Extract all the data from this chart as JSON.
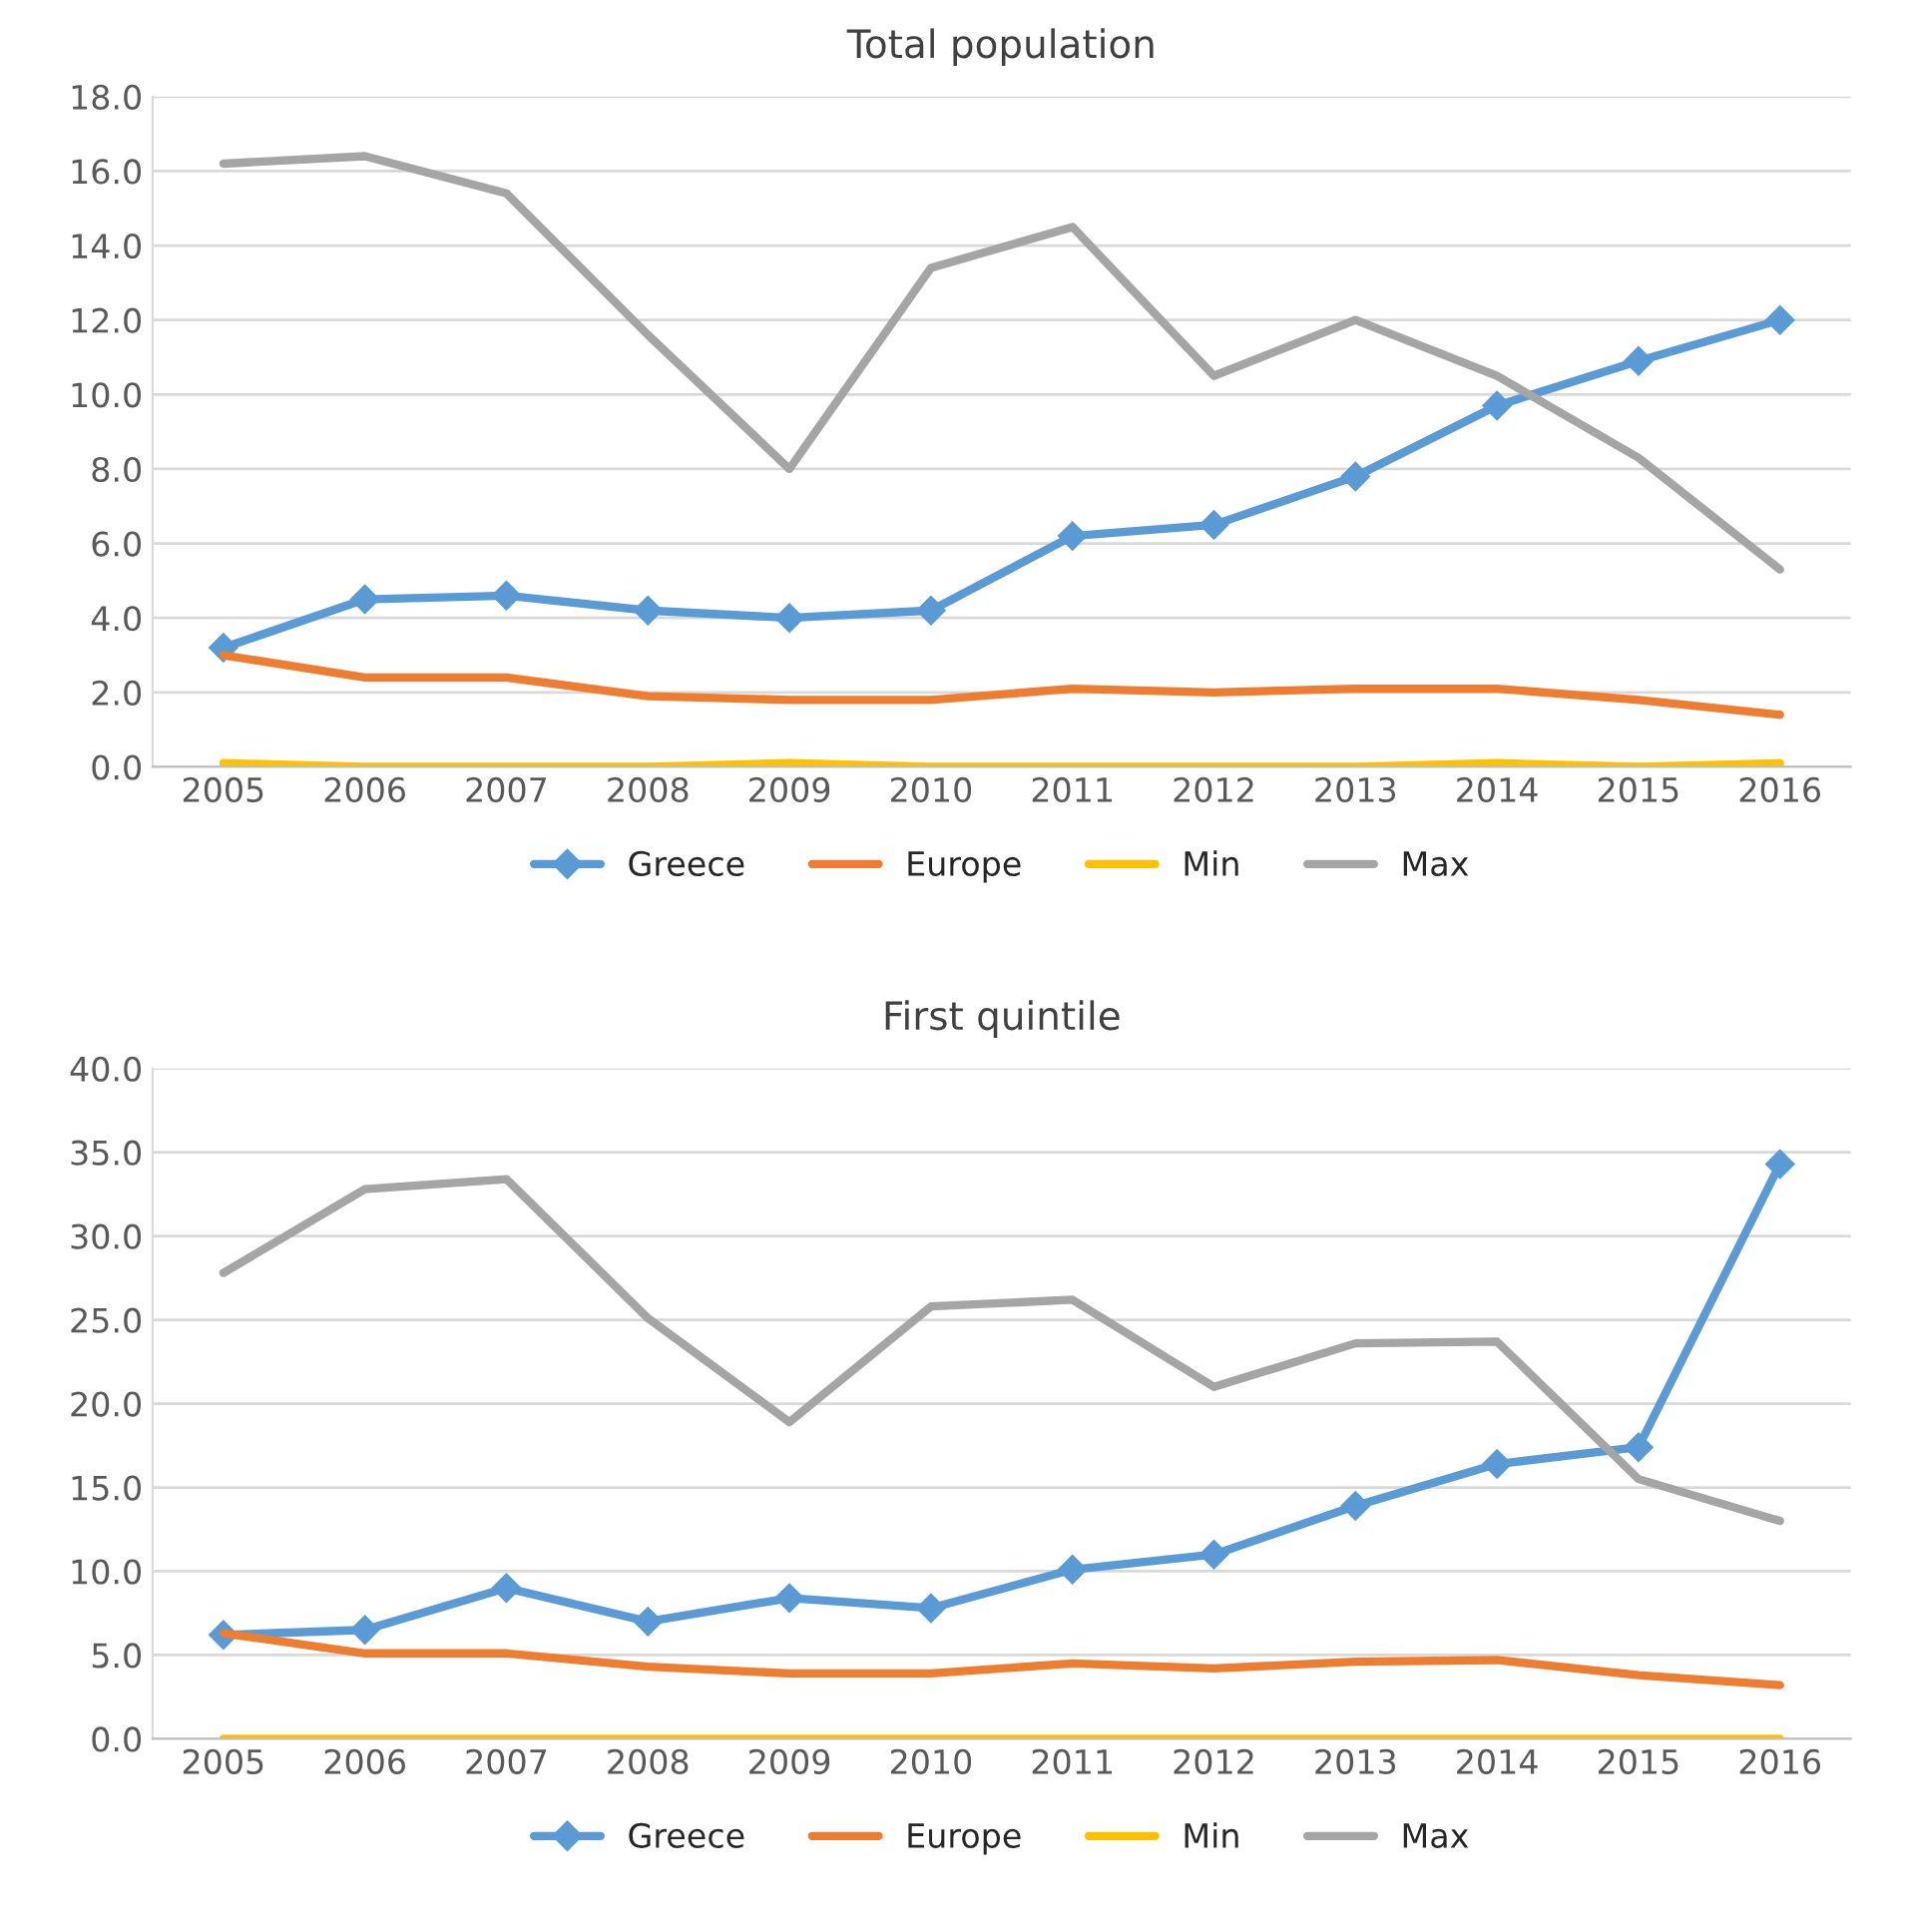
{
  "chart_data": [
    {
      "type": "line",
      "title": "Total population",
      "categories": [
        "2005",
        "2006",
        "2007",
        "2008",
        "2009",
        "2010",
        "2011",
        "2012",
        "2013",
        "2014",
        "2015",
        "2016"
      ],
      "ylim": [
        0,
        18
      ],
      "yticks": [
        {
          "value": 0,
          "label": "0.0"
        },
        {
          "value": 2,
          "label": "2.0"
        },
        {
          "value": 4,
          "label": "4.0"
        },
        {
          "value": 6,
          "label": "6.0"
        },
        {
          "value": 8,
          "label": "8.0"
        },
        {
          "value": 10,
          "label": "10.0"
        },
        {
          "value": 12,
          "label": "12.0"
        },
        {
          "value": 14,
          "label": "14.0"
        },
        {
          "value": 16,
          "label": "16.0"
        },
        {
          "value": 18,
          "label": "18.0"
        }
      ],
      "grid": "y",
      "legend": "bottom",
      "line_style": "solid",
      "series": [
        {
          "name": "Greece",
          "color": "#5b9bd5",
          "marker": "diamond",
          "values": [
            3.2,
            4.5,
            4.6,
            4.2,
            4.0,
            4.2,
            6.2,
            6.5,
            7.8,
            9.7,
            10.9,
            12.0
          ]
        },
        {
          "name": "Europe",
          "color": "#ed7d31",
          "marker": "none",
          "values": [
            3.0,
            2.4,
            2.4,
            1.9,
            1.8,
            1.8,
            2.1,
            2.0,
            2.1,
            2.1,
            1.8,
            1.4
          ]
        },
        {
          "name": "Min",
          "color": "#ffc000",
          "marker": "none",
          "values": [
            0.1,
            0.0,
            0.0,
            0.0,
            0.1,
            0.0,
            0.0,
            0.0,
            0.0,
            0.1,
            0.0,
            0.1
          ]
        },
        {
          "name": "Max",
          "color": "#a5a5a5",
          "marker": "none",
          "values": [
            16.2,
            16.4,
            15.4,
            11.6,
            8.0,
            13.4,
            14.5,
            10.5,
            12.0,
            10.5,
            8.3,
            5.3
          ]
        }
      ]
    },
    {
      "type": "line",
      "title": "First quintile",
      "categories": [
        "2005",
        "2006",
        "2007",
        "2008",
        "2009",
        "2010",
        "2011",
        "2012",
        "2013",
        "2014",
        "2015",
        "2016"
      ],
      "ylim": [
        0,
        40
      ],
      "yticks": [
        {
          "value": 0,
          "label": "0.0"
        },
        {
          "value": 5,
          "label": "5.0"
        },
        {
          "value": 10,
          "label": "10.0"
        },
        {
          "value": 15,
          "label": "15.0"
        },
        {
          "value": 20,
          "label": "20.0"
        },
        {
          "value": 25,
          "label": "25.0"
        },
        {
          "value": 30,
          "label": "30.0"
        },
        {
          "value": 35,
          "label": "35.0"
        },
        {
          "value": 40,
          "label": "40.0"
        }
      ],
      "grid": "y",
      "legend": "bottom",
      "line_style": "solid",
      "series": [
        {
          "name": "Greece",
          "color": "#5b9bd5",
          "marker": "diamond",
          "values": [
            6.2,
            6.5,
            9.0,
            7.0,
            8.4,
            7.8,
            10.1,
            11.0,
            13.9,
            16.4,
            17.4,
            34.3
          ]
        },
        {
          "name": "Europe",
          "color": "#ed7d31",
          "marker": "none",
          "values": [
            6.3,
            5.1,
            5.1,
            4.3,
            3.9,
            3.9,
            4.5,
            4.2,
            4.6,
            4.7,
            3.8,
            3.2
          ]
        },
        {
          "name": "Min",
          "color": "#ffc000",
          "marker": "none",
          "values": [
            0,
            0,
            0,
            0,
            0,
            0,
            0,
            0,
            0,
            0,
            0,
            0
          ]
        },
        {
          "name": "Max",
          "color": "#a5a5a5",
          "marker": "none",
          "values": [
            27.8,
            32.8,
            33.4,
            25.1,
            18.9,
            25.8,
            26.2,
            21.0,
            23.6,
            23.7,
            15.5,
            13.0
          ]
        }
      ]
    }
  ]
}
